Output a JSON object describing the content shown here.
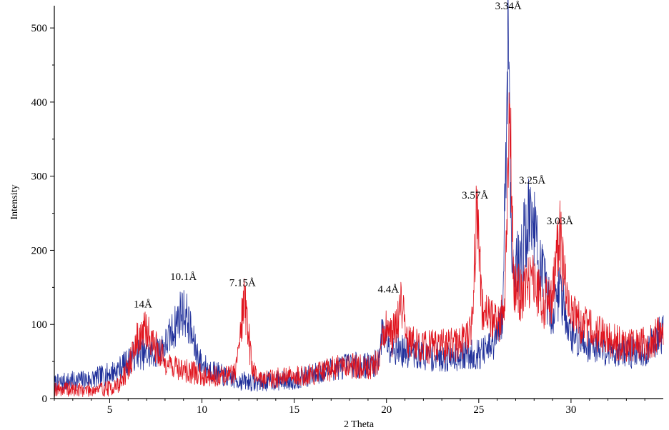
{
  "chart_data": {
    "type": "line",
    "xlabel": "2 Theta",
    "ylabel": "Intensity",
    "xlim": [
      2,
      35
    ],
    "ylim": [
      0,
      530
    ],
    "x_ticks": [
      5,
      10,
      15,
      20,
      25,
      30
    ],
    "y_ticks": [
      0,
      100,
      200,
      300,
      400,
      500
    ],
    "grid": false,
    "legend": "none",
    "series": [
      {
        "color": "#1f2f9a",
        "values": [
          {
            "x": 2.0,
            "y": 20
          },
          {
            "x": 3.0,
            "y": 24
          },
          {
            "x": 4.0,
            "y": 26
          },
          {
            "x": 5.0,
            "y": 34
          },
          {
            "x": 5.5,
            "y": 40
          },
          {
            "x": 6.0,
            "y": 50
          },
          {
            "x": 6.5,
            "y": 62
          },
          {
            "x": 7.0,
            "y": 58
          },
          {
            "x": 7.5,
            "y": 62
          },
          {
            "x": 8.0,
            "y": 72
          },
          {
            "x": 8.5,
            "y": 95
          },
          {
            "x": 8.9,
            "y": 120
          },
          {
            "x": 9.2,
            "y": 110
          },
          {
            "x": 9.6,
            "y": 70
          },
          {
            "x": 10.0,
            "y": 45
          },
          {
            "x": 11.0,
            "y": 32
          },
          {
            "x": 12.0,
            "y": 24
          },
          {
            "x": 13.0,
            "y": 22
          },
          {
            "x": 14.0,
            "y": 24
          },
          {
            "x": 15.0,
            "y": 25
          },
          {
            "x": 16.0,
            "y": 32
          },
          {
            "x": 17.0,
            "y": 40
          },
          {
            "x": 18.0,
            "y": 45
          },
          {
            "x": 19.0,
            "y": 45
          },
          {
            "x": 19.5,
            "y": 48
          },
          {
            "x": 19.8,
            "y": 92
          },
          {
            "x": 20.2,
            "y": 72
          },
          {
            "x": 21.0,
            "y": 62
          },
          {
            "x": 22.0,
            "y": 58
          },
          {
            "x": 23.0,
            "y": 55
          },
          {
            "x": 24.0,
            "y": 58
          },
          {
            "x": 25.0,
            "y": 60
          },
          {
            "x": 25.8,
            "y": 70
          },
          {
            "x": 26.3,
            "y": 110
          },
          {
            "x": 26.6,
            "y": 515
          },
          {
            "x": 26.8,
            "y": 180
          },
          {
            "x": 27.2,
            "y": 180
          },
          {
            "x": 27.6,
            "y": 235
          },
          {
            "x": 27.9,
            "y": 250
          },
          {
            "x": 28.3,
            "y": 180
          },
          {
            "x": 29.0,
            "y": 110
          },
          {
            "x": 29.4,
            "y": 150
          },
          {
            "x": 30.0,
            "y": 85
          },
          {
            "x": 31.0,
            "y": 72
          },
          {
            "x": 32.0,
            "y": 66
          },
          {
            "x": 33.0,
            "y": 62
          },
          {
            "x": 34.0,
            "y": 62
          },
          {
            "x": 35.0,
            "y": 90
          }
        ]
      },
      {
        "color": "#e0141e",
        "values": [
          {
            "x": 2.0,
            "y": 14
          },
          {
            "x": 3.0,
            "y": 12
          },
          {
            "x": 4.0,
            "y": 12
          },
          {
            "x": 5.0,
            "y": 14
          },
          {
            "x": 5.5,
            "y": 18
          },
          {
            "x": 6.0,
            "y": 40
          },
          {
            "x": 6.5,
            "y": 80
          },
          {
            "x": 7.0,
            "y": 92
          },
          {
            "x": 7.5,
            "y": 70
          },
          {
            "x": 8.0,
            "y": 50
          },
          {
            "x": 9.0,
            "y": 38
          },
          {
            "x": 10.0,
            "y": 32
          },
          {
            "x": 11.0,
            "y": 30
          },
          {
            "x": 11.8,
            "y": 35
          },
          {
            "x": 12.3,
            "y": 138
          },
          {
            "x": 12.7,
            "y": 45
          },
          {
            "x": 13.0,
            "y": 28
          },
          {
            "x": 14.0,
            "y": 28
          },
          {
            "x": 15.0,
            "y": 30
          },
          {
            "x": 16.0,
            "y": 32
          },
          {
            "x": 17.0,
            "y": 40
          },
          {
            "x": 18.0,
            "y": 45
          },
          {
            "x": 19.0,
            "y": 42
          },
          {
            "x": 19.6,
            "y": 50
          },
          {
            "x": 19.9,
            "y": 95
          },
          {
            "x": 20.3,
            "y": 80
          },
          {
            "x": 20.8,
            "y": 130
          },
          {
            "x": 21.2,
            "y": 75
          },
          {
            "x": 22.0,
            "y": 70
          },
          {
            "x": 23.0,
            "y": 70
          },
          {
            "x": 24.0,
            "y": 75
          },
          {
            "x": 24.6,
            "y": 90
          },
          {
            "x": 24.9,
            "y": 255
          },
          {
            "x": 25.2,
            "y": 120
          },
          {
            "x": 26.0,
            "y": 100
          },
          {
            "x": 26.4,
            "y": 120
          },
          {
            "x": 26.65,
            "y": 420
          },
          {
            "x": 26.9,
            "y": 150
          },
          {
            "x": 27.4,
            "y": 140
          },
          {
            "x": 27.9,
            "y": 160
          },
          {
            "x": 28.4,
            "y": 130
          },
          {
            "x": 29.0,
            "y": 135
          },
          {
            "x": 29.4,
            "y": 220
          },
          {
            "x": 29.8,
            "y": 120
          },
          {
            "x": 30.5,
            "y": 100
          },
          {
            "x": 31.5,
            "y": 85
          },
          {
            "x": 32.5,
            "y": 75
          },
          {
            "x": 33.5,
            "y": 72
          },
          {
            "x": 34.3,
            "y": 75
          },
          {
            "x": 35.0,
            "y": 100
          }
        ]
      }
    ],
    "annotations": [
      {
        "text": "14Å",
        "x": 6.8,
        "y": 123
      },
      {
        "text": "10.1Å",
        "x": 9.0,
        "y": 160
      },
      {
        "text": "7.15Å",
        "x": 12.2,
        "y": 152
      },
      {
        "text": "4.4Å",
        "x": 20.1,
        "y": 143
      },
      {
        "text": "3.57Å",
        "x": 24.8,
        "y": 270
      },
      {
        "text": "3.34Å",
        "x": 26.6,
        "y": 525
      },
      {
        "text": "3.25Å",
        "x": 27.9,
        "y": 290
      },
      {
        "text": "3.03Å",
        "x": 29.4,
        "y": 235
      }
    ]
  }
}
